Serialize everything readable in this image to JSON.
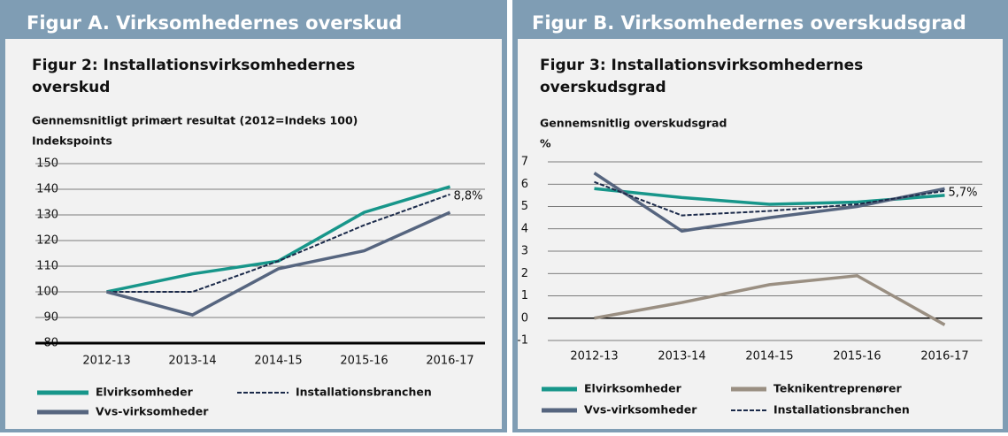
{
  "headers": [
    "Figur A. Virksomhedernes overskud",
    "Figur B. Virksomhedernes overskudsgrad"
  ],
  "chart_data": [
    {
      "type": "line",
      "title": "Figur 2: Installationsvirksomhedernes overskud",
      "subtitle": "Gennemsnitligt primært resultat (2012=Indeks 100)",
      "ylabel": "Indekspoints",
      "categories": [
        "2012-13",
        "2013-14",
        "2014-15",
        "2015-16",
        "2016-17"
      ],
      "series": [
        {
          "name": "Elvirksomheder",
          "color": "#17968a",
          "values": [
            100,
            107,
            112,
            131,
            141
          ]
        },
        {
          "name": "Installationsbranchen",
          "color": "#1b2a4a",
          "dashed": true,
          "values": [
            100,
            100,
            112,
            126,
            138
          ]
        },
        {
          "name": "Vvs-virksomheder",
          "color": "#56657f",
          "values": [
            100,
            91,
            109,
            116,
            131
          ]
        }
      ],
      "annotation": "8,8%",
      "ylim": [
        80,
        150
      ],
      "yticks": [
        80,
        90,
        100,
        110,
        120,
        130,
        140,
        150
      ],
      "grid": true
    },
    {
      "type": "line",
      "title": "Figur 3: Installationsvirksomhedernes overskudsgrad",
      "subtitle": "Gennemsnitlig overskudsgrad",
      "ylabel": "%",
      "categories": [
        "2012-13",
        "2013-14",
        "2014-15",
        "2015-16",
        "2016-17"
      ],
      "series": [
        {
          "name": "Elvirksomheder",
          "color": "#17968a",
          "values": [
            5.8,
            5.4,
            5.1,
            5.2,
            5.5
          ]
        },
        {
          "name": "Teknikentreprenører",
          "color": "#9a8f82",
          "values": [
            0,
            0.7,
            1.5,
            1.9,
            -0.3
          ]
        },
        {
          "name": "Vvs-virksomheder",
          "color": "#56657f",
          "values": [
            6.5,
            3.9,
            4.5,
            5.0,
            5.8
          ]
        },
        {
          "name": "Installationsbranchen",
          "color": "#1b2a4a",
          "dashed": true,
          "values": [
            6.1,
            4.6,
            4.8,
            5.1,
            5.7
          ]
        }
      ],
      "annotation": "5,7%",
      "ylim": [
        -1,
        7
      ],
      "yticks": [
        -1,
        0,
        1,
        2,
        3,
        4,
        5,
        6,
        7
      ],
      "grid": true
    }
  ]
}
